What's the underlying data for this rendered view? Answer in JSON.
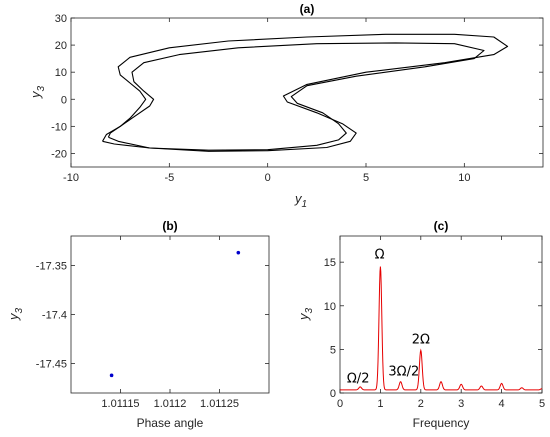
{
  "chart_data": [
    {
      "id": "a",
      "type": "line",
      "title": "(a)",
      "xlabel": "y",
      "xlabel_sub": "1",
      "ylabel": "y",
      "ylabel_sub": "3",
      "xlim": [
        -10,
        14
      ],
      "ylim": [
        -25,
        30
      ],
      "xticks": [
        -10,
        -5,
        0,
        5,
        10
      ],
      "yticks": [
        -20,
        -10,
        0,
        10,
        20,
        30
      ],
      "color": "#000000",
      "series": [
        {
          "x": [
            -8.1,
            -8.0,
            -7.5,
            -7.0,
            -6.5,
            -6.2,
            -6.5,
            -7.0,
            -7.5,
            -7.6,
            -7.0,
            -5.0,
            -2.0,
            2.0,
            6.0,
            9.5,
            11.5,
            12.2,
            11.5,
            9.0,
            5.0,
            2.0,
            0.8,
            1.0,
            2.5,
            3.8,
            4.5,
            4.2,
            3.0,
            0.0,
            -3.0,
            -6.0,
            -7.6,
            -8.1
          ],
          "y": [
            -14.0,
            -12.5,
            -10.0,
            -7.0,
            -3.0,
            0.0,
            3.0,
            6.0,
            9.0,
            12.0,
            15.5,
            19.0,
            21.5,
            23.0,
            24.0,
            24.0,
            23.0,
            19.5,
            16.5,
            13.5,
            10.0,
            5.5,
            1.2,
            -1.0,
            -5.0,
            -9.0,
            -12.5,
            -15.5,
            -17.8,
            -19.0,
            -19.2,
            -18.0,
            -15.5,
            -14.0
          ]
        },
        {
          "x": [
            -8.4,
            -8.2,
            -7.5,
            -6.9,
            -6.0,
            -5.8,
            -6.3,
            -6.8,
            -6.9,
            -6.3,
            -4.5,
            -1.5,
            2.5,
            6.5,
            9.5,
            11.0,
            10.5,
            8.0,
            4.5,
            2.0,
            1.2,
            1.5,
            2.8,
            3.6,
            4.0,
            3.6,
            2.5,
            0.0,
            -3.0,
            -6.0,
            -7.8,
            -8.4
          ],
          "y": [
            -15.5,
            -13.0,
            -10.0,
            -7.0,
            -2.5,
            0.0,
            3.0,
            6.5,
            10.0,
            13.5,
            16.5,
            19.0,
            20.5,
            20.8,
            20.5,
            18.0,
            15.0,
            12.0,
            8.5,
            5.0,
            1.0,
            -1.5,
            -5.0,
            -9.0,
            -12.5,
            -15.0,
            -17.0,
            -18.6,
            -18.8,
            -18.0,
            -16.5,
            -15.5
          ]
        }
      ]
    },
    {
      "id": "b",
      "type": "scatter",
      "title": "(b)",
      "xlabel": "Phase angle",
      "ylabel": "y",
      "ylabel_sub": "3",
      "xlim": [
        1.0111,
        1.0113
      ],
      "ylim": [
        -17.48,
        -17.32
      ],
      "xticks": [
        1.01115,
        1.0112,
        1.01125
      ],
      "xtick_labels": [
        "1.01115",
        "1.0112",
        "1.01125"
      ],
      "yticks": [
        -17.45,
        -17.4,
        -17.35
      ],
      "ytick_labels": [
        "-17.45",
        "-17.4",
        "-17.35"
      ],
      "color": "#0000cc",
      "points": [
        {
          "x": 1.011141,
          "y": -17.462
        },
        {
          "x": 1.011269,
          "y": -17.337
        }
      ]
    },
    {
      "id": "c",
      "type": "line",
      "title": "(c)",
      "xlabel": "Frequency",
      "ylabel": "y",
      "ylabel_sub": "3",
      "xlim": [
        0,
        5
      ],
      "ylim": [
        0,
        18
      ],
      "xticks": [
        0,
        1,
        2,
        3,
        4,
        5
      ],
      "yticks": [
        0,
        5,
        10,
        15
      ],
      "color": "#e60000",
      "baseline": 0.35,
      "peaks": [
        {
          "f": 0.5,
          "a": 0.7
        },
        {
          "f": 1.0,
          "a": 14.5
        },
        {
          "f": 1.5,
          "a": 1.3
        },
        {
          "f": 2.0,
          "a": 4.9
        },
        {
          "f": 2.5,
          "a": 1.3
        },
        {
          "f": 3.0,
          "a": 1.0
        },
        {
          "f": 3.5,
          "a": 0.8
        },
        {
          "f": 4.0,
          "a": 1.1
        },
        {
          "f": 4.5,
          "a": 0.6
        },
        {
          "f": 5.0,
          "a": 0.5
        }
      ],
      "annotations": [
        {
          "text": "Ω",
          "x": 0.98,
          "y": 15.4
        },
        {
          "text": "2Ω",
          "x": 2.0,
          "y": 5.7
        },
        {
          "text": "3Ω/2",
          "x": 1.58,
          "y": 2.0
        },
        {
          "text": "Ω/2",
          "x": 0.45,
          "y": 1.2
        }
      ]
    }
  ]
}
